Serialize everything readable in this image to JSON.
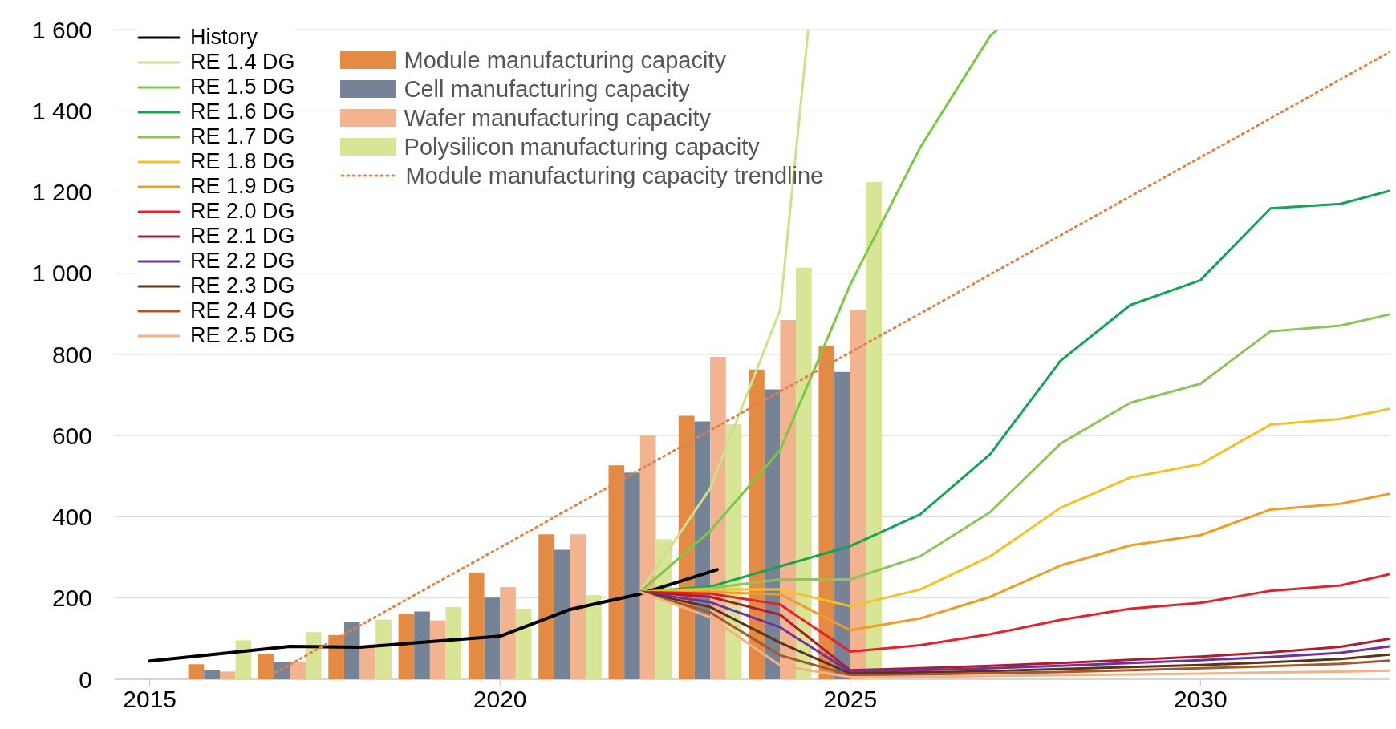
{
  "chart_data": {
    "type": "line",
    "legend": "top left",
    "grid": "y",
    "xlim": [
      2014.5,
      2032.7
    ],
    "xticks": [
      2015,
      2020,
      2025,
      2030
    ],
    "ylim": [
      0,
      1600
    ],
    "yticks": [
      0,
      200,
      400,
      600,
      800,
      {
        "value": 1000,
        "label": "1 000"
      },
      {
        "value": 1200,
        "label": "1 200"
      },
      {
        "value": 1400,
        "label": "1 400"
      },
      {
        "value": 1600,
        "label": "1 600"
      }
    ],
    "series": [
      {
        "name": "History",
        "color": "#000000",
        "x": [
          2015,
          2017,
          2018,
          2020,
          2021,
          2022,
          2023.1
        ],
        "values": [
          45,
          81,
          79,
          106,
          172,
          210,
          270
        ]
      },
      {
        "name": "RE 1.4 DG",
        "color": "#cfe08a",
        "x": [
          2022,
          2023,
          2024,
          2024.4
        ],
        "values": [
          215,
          470,
          910,
          1600
        ]
      },
      {
        "name": "RE 1.5 DG",
        "color": "#7ac943",
        "x": [
          2022,
          2023,
          2024,
          2025,
          2026,
          2027,
          2027.1
        ],
        "values": [
          215,
          365,
          565,
          972,
          1310,
          1585,
          1600
        ]
      },
      {
        "name": "RE 1.6 DG",
        "color": "#13a454",
        "x": [
          2022,
          2023,
          2024,
          2025,
          2026,
          2027,
          2028,
          2029,
          2030,
          2031,
          2032,
          2032.7
        ],
        "values": [
          215,
          228,
          278,
          328,
          406,
          555,
          784,
          922,
          983,
          1160,
          1171,
          1203
        ]
      },
      {
        "name": "RE 1.7 DG",
        "color": "#8dc654",
        "x": [
          2022,
          2023,
          2024,
          2025,
          2026,
          2027,
          2028,
          2029,
          2030,
          2031,
          2032,
          2032.7
        ],
        "values": [
          215,
          224,
          246,
          246,
          303,
          412,
          580,
          681,
          728,
          857,
          871,
          899
        ]
      },
      {
        "name": "RE 1.8 DG",
        "color": "#f5c125",
        "x": [
          2022,
          2023,
          2024,
          2025,
          2026,
          2027,
          2028,
          2029,
          2030,
          2031,
          2032,
          2032.7
        ],
        "values": [
          215,
          221,
          221,
          180,
          221,
          303,
          422,
          497,
          530,
          627,
          641,
          666
        ]
      },
      {
        "name": "RE 1.9 DG",
        "color": "#f29b25",
        "x": [
          2022,
          2023,
          2024,
          2025,
          2026,
          2027,
          2028,
          2029,
          2030,
          2031,
          2032,
          2032.7
        ],
        "values": [
          215,
          215,
          209,
          121,
          150,
          203,
          280,
          330,
          355,
          418,
          432,
          457
        ]
      },
      {
        "name": "RE 2.0 DG",
        "color": "#e8202a",
        "x": [
          2022,
          2023,
          2024,
          2025,
          2026,
          2027,
          2028,
          2029,
          2030,
          2031,
          2032,
          2032.7
        ],
        "values": [
          215,
          211,
          184,
          68,
          84,
          111,
          146,
          174,
          188,
          218,
          231,
          259
        ]
      },
      {
        "name": "RE 2.1 DG",
        "color": "#b01c2e",
        "x": [
          2022,
          2023,
          2024,
          2025,
          2026,
          2027,
          2028,
          2029,
          2030,
          2031,
          2032,
          2032.7
        ],
        "values": [
          215,
          203,
          159,
          22,
          27,
          33,
          40,
          48,
          56,
          66,
          80,
          100
        ]
      },
      {
        "name": "RE 2.2 DG",
        "color": "#7030a0",
        "x": [
          2022,
          2023,
          2024,
          2025,
          2026,
          2027,
          2028,
          2029,
          2030,
          2031,
          2032,
          2032.7
        ],
        "values": [
          215,
          190,
          128,
          18,
          22,
          27,
          33,
          40,
          47,
          55,
          65,
          81
        ]
      },
      {
        "name": "RE 2.3 DG",
        "color": "#5c3317",
        "x": [
          2022,
          2023,
          2024,
          2025,
          2026,
          2027,
          2028,
          2029,
          2030,
          2031,
          2032,
          2032.7
        ],
        "values": [
          215,
          178,
          90,
          14,
          17,
          20,
          25,
          30,
          35,
          42,
          50,
          61
        ]
      },
      {
        "name": "RE 2.4 DG",
        "color": "#a5582b",
        "x": [
          2022,
          2023,
          2024,
          2025,
          2026,
          2027,
          2028,
          2029,
          2030,
          2031,
          2032,
          2032.7
        ],
        "values": [
          215,
          165,
          59,
          10,
          12,
          15,
          18,
          22,
          27,
          32,
          38,
          46
        ]
      },
      {
        "name": "RE 2.5 DG",
        "color": "#f4b183",
        "x": [
          2022,
          2023,
          2024,
          2025,
          2026,
          2027,
          2028,
          2029,
          2030,
          2031,
          2032,
          2032.7
        ],
        "values": [
          215,
          153,
          34,
          5,
          6,
          8,
          10,
          12,
          14,
          17,
          19,
          21
        ]
      },
      {
        "name": "Module manufacturing capacity",
        "type": "bar",
        "color": "#e38a45",
        "x": [
          2016,
          2017,
          2018,
          2019,
          2020,
          2021,
          2022,
          2023,
          2024,
          2025
        ],
        "values": [
          37,
          63,
          109,
          162,
          263,
          357,
          527,
          649,
          763,
          822
        ]
      },
      {
        "name": "Cell manufacturing capacity",
        "type": "bar",
        "color": "#768396",
        "x": [
          2016,
          2017,
          2018,
          2019,
          2020,
          2021,
          2022,
          2023,
          2024,
          2025
        ],
        "values": [
          22,
          43,
          142,
          167,
          201,
          319,
          509,
          635,
          714,
          757
        ]
      },
      {
        "name": "Wafer manufacturing capacity",
        "type": "bar",
        "color": "#f2b390",
        "x": [
          2016,
          2017,
          2018,
          2019,
          2020,
          2021,
          2022,
          2023,
          2024,
          2025
        ],
        "values": [
          19,
          44,
          80,
          145,
          227,
          357,
          600,
          794,
          885,
          910
        ]
      },
      {
        "name": "Polysilicon manufacturing capacity",
        "type": "bar",
        "color": "#d8e596",
        "x": [
          2016,
          2017,
          2018,
          2019,
          2020,
          2021,
          2022,
          2023,
          2024,
          2025
        ],
        "values": [
          96,
          116,
          147,
          178,
          174,
          207,
          345,
          628,
          1014,
          1225
        ]
      },
      {
        "name": "Module manufacturing capacity trendline",
        "color": "#e0834a",
        "line_style": "dotted",
        "x": [
          2016.8,
          2032.7
        ],
        "values": [
          17,
          1545
        ]
      }
    ]
  }
}
